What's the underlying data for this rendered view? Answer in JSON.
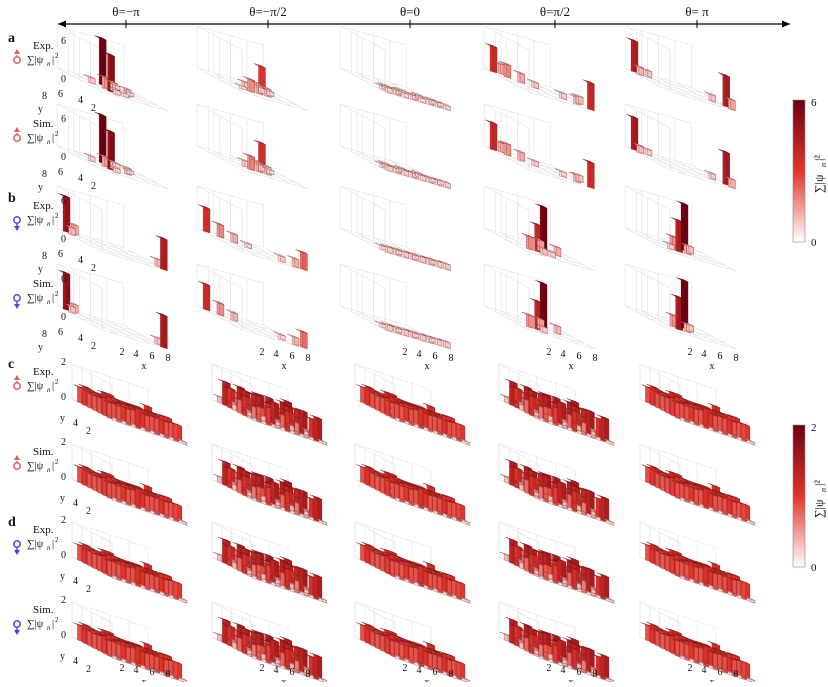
{
  "chart_data": {
    "type": "bar3d",
    "theta_labels": [
      "θ=−π",
      "θ=−π/2",
      "θ=0",
      "θ=π/2",
      "θ= π"
    ],
    "panel_letters": [
      "a",
      "b",
      "c",
      "d"
    ],
    "row_labels": {
      "exp": "Exp.",
      "sim": "Sim.",
      "quantity": "Σ|ψ_n|²"
    },
    "x_ticks": [
      "2",
      "4",
      "6",
      "8"
    ],
    "y_ticks_small": [
      "8",
      "6",
      "4",
      "2"
    ],
    "y_ticks_large": [
      "4",
      "2"
    ],
    "axis_x": "x",
    "axis_y": "y",
    "z_ticks_ab": [
      "6",
      "0"
    ],
    "z_ticks_cd": [
      "2",
      "0"
    ],
    "colorbars": [
      {
        "label": "Σ|ψ_n|²",
        "max_label": "6",
        "min_label": "0",
        "max": 6
      },
      {
        "label": "Σ|ψ_n|²",
        "max_label": "2",
        "min_label": "0",
        "max": 2
      }
    ],
    "colors": {
      "high": "#6b0010",
      "mid": "#e2352c",
      "low": "#ffffff"
    },
    "grid_ab": {
      "nx": 8,
      "ny": 8,
      "zmax": 6
    },
    "grid_cd": {
      "nx": 8,
      "ny": 8,
      "zmax": 2
    },
    "rows": [
      {
        "panel": "a",
        "kind": "exp",
        "spin": "up",
        "cells": [
          [
            [
              3,
              3,
              5.2
            ],
            [
              4,
              6,
              6.6
            ],
            [
              3,
              4,
              1.6
            ],
            [
              4,
              4,
              1.2
            ],
            [
              5,
              3,
              1.0
            ],
            [
              2,
              5,
              0.8
            ],
            [
              3,
              2,
              0.7
            ],
            [
              5,
              5,
              0.7
            ],
            [
              4,
              2,
              0.5
            ],
            [
              6,
              4,
              0.4
            ]
          ],
          [
            [
              7,
              7,
              3.2
            ],
            [
              3,
              3,
              1.7
            ],
            [
              4,
              3,
              1.4
            ],
            [
              5,
              3,
              1.1
            ],
            [
              3,
              4,
              0.9
            ],
            [
              5,
              4,
              0.8
            ],
            [
              6,
              4,
              0.6
            ],
            [
              2,
              3,
              0.4
            ]
          ],
          [
            [
              1,
              1,
              0.7
            ],
            [
              2,
              1,
              0.7
            ],
            [
              3,
              1,
              0.6
            ],
            [
              4,
              1,
              0.7
            ],
            [
              5,
              1,
              0.6
            ],
            [
              6,
              1,
              0.7
            ],
            [
              7,
              1,
              0.6
            ],
            [
              1,
              2,
              0.5
            ],
            [
              3,
              2,
              0.6
            ],
            [
              5,
              2,
              0.5
            ],
            [
              7,
              2,
              0.6
            ],
            [
              2,
              3,
              0.5
            ],
            [
              4,
              3,
              0.5
            ],
            [
              6,
              3,
              0.5
            ],
            [
              8,
              2,
              0.5
            ],
            [
              8,
              1,
              0.6
            ]
          ],
          [
            [
              1,
              8,
              3.6
            ],
            [
              2,
              7,
              1.8
            ],
            [
              3,
              6,
              1.3
            ],
            [
              7,
              2,
              1.0
            ],
            [
              8,
              1,
              3.8
            ],
            [
              4,
              5,
              0.8
            ],
            [
              6,
              3,
              0.8
            ],
            [
              2,
              8,
              1.4
            ],
            [
              8,
              3,
              1.0
            ]
          ],
          [
            [
              1,
              8,
              4.4
            ],
            [
              8,
              2,
              4.4
            ],
            [
              2,
              7,
              0.9
            ],
            [
              7,
              3,
              0.9
            ],
            [
              8,
              1,
              1.4
            ],
            [
              1,
              7,
              1.1
            ]
          ]
        ]
      },
      {
        "panel": "a",
        "kind": "sim",
        "spin": "up",
        "cells": [
          [
            [
              3,
              3,
              5.4
            ],
            [
              4,
              6,
              6.8
            ],
            [
              3,
              4,
              1.4
            ],
            [
              4,
              4,
              1.0
            ],
            [
              5,
              3,
              0.9
            ],
            [
              2,
              5,
              0.7
            ],
            [
              3,
              2,
              0.6
            ],
            [
              5,
              5,
              0.7
            ],
            [
              6,
              4,
              0.4
            ]
          ],
          [
            [
              7,
              7,
              3.4
            ],
            [
              3,
              3,
              1.9
            ],
            [
              4,
              3,
              1.4
            ],
            [
              5,
              3,
              1.1
            ],
            [
              3,
              4,
              0.8
            ],
            [
              5,
              4,
              0.8
            ],
            [
              6,
              4,
              0.5
            ]
          ],
          [
            [
              1,
              1,
              0.7
            ],
            [
              2,
              1,
              0.7
            ],
            [
              3,
              1,
              0.7
            ],
            [
              4,
              1,
              0.7
            ],
            [
              5,
              1,
              0.7
            ],
            [
              6,
              1,
              0.7
            ],
            [
              7,
              1,
              0.7
            ],
            [
              8,
              1,
              0.7
            ],
            [
              1,
              2,
              0.5
            ],
            [
              3,
              2,
              0.5
            ],
            [
              5,
              2,
              0.5
            ],
            [
              7,
              2,
              0.5
            ],
            [
              2,
              3,
              0.5
            ],
            [
              4,
              3,
              0.5
            ],
            [
              6,
              3,
              0.5
            ],
            [
              8,
              2,
              0.5
            ]
          ],
          [
            [
              1,
              8,
              3.8
            ],
            [
              2,
              7,
              1.6
            ],
            [
              3,
              6,
              1.2
            ],
            [
              7,
              2,
              1.0
            ],
            [
              8,
              1,
              3.6
            ],
            [
              4,
              5,
              0.7
            ],
            [
              6,
              3,
              0.7
            ],
            [
              2,
              8,
              1.3
            ],
            [
              8,
              3,
              0.9
            ]
          ],
          [
            [
              1,
              8,
              4.6
            ],
            [
              8,
              2,
              4.6
            ],
            [
              2,
              7,
              0.8
            ],
            [
              7,
              3,
              0.8
            ],
            [
              8,
              1,
              1.2
            ],
            [
              1,
              7,
              1.0
            ]
          ]
        ]
      },
      {
        "panel": "b",
        "kind": "exp",
        "spin": "down",
        "cells": [
          [
            [
              1,
              8,
              5.0
            ],
            [
              8,
              1,
              4.4
            ],
            [
              2,
              8,
              1.3
            ],
            [
              1,
              7,
              1.0
            ],
            [
              8,
              2,
              1.0
            ]
          ],
          [
            [
              1,
              8,
              3.4
            ],
            [
              2,
              7,
              1.8
            ],
            [
              3,
              6,
              1.2
            ],
            [
              7,
              1,
              1.2
            ],
            [
              8,
              1,
              2.4
            ],
            [
              6,
              2,
              0.8
            ],
            [
              4,
              5,
              0.6
            ]
          ],
          [
            [
              1,
              1,
              0.8
            ],
            [
              2,
              1,
              0.8
            ],
            [
              3,
              1,
              0.8
            ],
            [
              4,
              1,
              0.8
            ],
            [
              5,
              1,
              0.8
            ],
            [
              6,
              1,
              0.8
            ],
            [
              7,
              1,
              0.8
            ],
            [
              8,
              1,
              0.8
            ],
            [
              1,
              2,
              0.5
            ],
            [
              3,
              2,
              0.5
            ],
            [
              5,
              2,
              0.5
            ],
            [
              7,
              2,
              0.5
            ]
          ],
          [
            [
              3,
              3,
              3.8
            ],
            [
              5,
              5,
              6.2
            ],
            [
              2,
              3,
              1.8
            ],
            [
              4,
              4,
              1.5
            ],
            [
              6,
              4,
              1.2
            ],
            [
              3,
              2,
              0.9
            ],
            [
              4,
              2,
              0.7
            ]
          ],
          [
            [
              3,
              3,
              4.4
            ],
            [
              5,
              5,
              6.6
            ],
            [
              3,
              4,
              1.7
            ],
            [
              4,
              3,
              1.2
            ],
            [
              5,
              4,
              1.0
            ],
            [
              2,
              3,
              0.7
            ]
          ]
        ]
      },
      {
        "panel": "b",
        "kind": "sim",
        "spin": "down",
        "cells": [
          [
            [
              1,
              8,
              5.2
            ],
            [
              8,
              1,
              4.6
            ],
            [
              2,
              8,
              1.1
            ],
            [
              1,
              7,
              0.9
            ],
            [
              8,
              2,
              0.9
            ]
          ],
          [
            [
              1,
              8,
              3.6
            ],
            [
              2,
              7,
              1.7
            ],
            [
              3,
              6,
              1.1
            ],
            [
              7,
              1,
              1.1
            ],
            [
              8,
              1,
              2.2
            ],
            [
              6,
              2,
              0.7
            ]
          ],
          [
            [
              1,
              1,
              0.8
            ],
            [
              2,
              1,
              0.8
            ],
            [
              3,
              1,
              0.8
            ],
            [
              4,
              1,
              0.8
            ],
            [
              5,
              1,
              0.8
            ],
            [
              6,
              1,
              0.8
            ],
            [
              7,
              1,
              0.8
            ],
            [
              8,
              1,
              0.8
            ],
            [
              1,
              2,
              0.5
            ],
            [
              3,
              2,
              0.5
            ],
            [
              5,
              2,
              0.5
            ],
            [
              7,
              2,
              0.5
            ]
          ],
          [
            [
              3,
              3,
              4.0
            ],
            [
              5,
              5,
              6.4
            ],
            [
              2,
              3,
              1.7
            ],
            [
              4,
              4,
              1.4
            ],
            [
              6,
              4,
              1.1
            ],
            [
              3,
              2,
              0.8
            ]
          ],
          [
            [
              3,
              3,
              4.6
            ],
            [
              5,
              5,
              6.8
            ],
            [
              3,
              4,
              1.6
            ],
            [
              4,
              3,
              1.1
            ],
            [
              5,
              4,
              0.9
            ]
          ]
        ]
      },
      {
        "panel": "c",
        "kind": "exp",
        "spin": "up",
        "cells": [
          "uniform",
          "wave",
          "uniform",
          "wave",
          "uniform"
        ]
      },
      {
        "panel": "c",
        "kind": "sim",
        "spin": "up",
        "cells": [
          "uniform",
          "wave",
          "uniform",
          "wave",
          "uniform"
        ]
      },
      {
        "panel": "d",
        "kind": "exp",
        "spin": "down",
        "cells": [
          "uniform",
          "wave",
          "uniform",
          "wave",
          "uniform"
        ]
      },
      {
        "panel": "d",
        "kind": "sim",
        "spin": "down",
        "cells": [
          "uniform",
          "wave",
          "uniform",
          "wave",
          "uniform"
        ]
      }
    ]
  }
}
